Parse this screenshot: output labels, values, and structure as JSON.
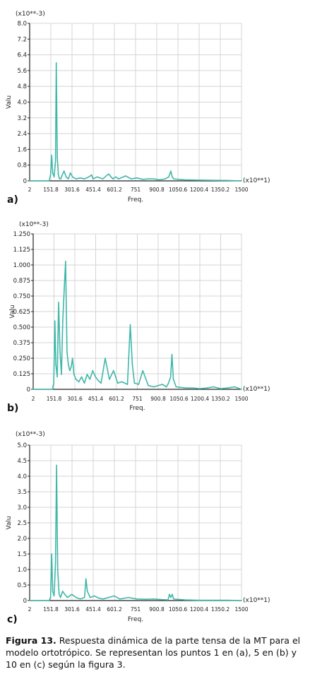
{
  "chart_data": [
    {
      "type": "line",
      "panel_label": "a)",
      "scale_note": "(x10**-3)",
      "x_scale_note": "(x10**1)",
      "xlabel": "Freq.",
      "ylabel": "Valu",
      "ylim": [
        0,
        8.0
      ],
      "yticks": [
        "0",
        "0.8",
        "1.6",
        "2.4",
        "3.2",
        "4.0",
        "4.8",
        "5.6",
        "6.4",
        "7.2",
        "8.0"
      ],
      "xlim": [
        2,
        1500
      ],
      "xticks": [
        "2",
        "151.8",
        "301.6",
        "451.4",
        "601.2",
        "751",
        "900.8",
        "1050.6",
        "1200.4",
        "1350.2",
        "1500"
      ],
      "grid": true,
      "color": "#3fb7a8",
      "x": [
        2,
        140,
        150,
        158,
        165,
        175,
        185,
        190,
        197,
        205,
        213,
        222,
        232,
        245,
        260,
        275,
        290,
        305,
        330,
        360,
        390,
        420,
        440,
        450,
        465,
        480,
        520,
        560,
        590,
        610,
        630,
        680,
        720,
        760,
        800,
        840,
        880,
        920,
        960,
        985,
        1000,
        1010,
        1020,
        1100,
        1200,
        1300,
        1400,
        1500
      ],
      "y": [
        0,
        0,
        0.3,
        1.3,
        0.4,
        0.2,
        1.0,
        6.0,
        1.2,
        0.3,
        0.1,
        0.1,
        0.3,
        0.5,
        0.2,
        0.1,
        0.4,
        0.2,
        0.1,
        0.15,
        0.1,
        0.2,
        0.3,
        0.1,
        0.15,
        0.2,
        0.1,
        0.35,
        0.1,
        0.2,
        0.1,
        0.25,
        0.1,
        0.15,
        0.08,
        0.1,
        0.1,
        0.05,
        0.1,
        0.2,
        0.5,
        0.2,
        0.1,
        0.05,
        0.04,
        0.03,
        0.02,
        0
      ]
    },
    {
      "type": "line",
      "panel_label": "b)",
      "scale_note": "(x10**-3)",
      "x_scale_note": "(x10**1)",
      "xlabel": "Freq.",
      "ylabel": "Valu",
      "ylim": [
        0,
        1.25
      ],
      "yticks": [
        "0",
        "0.125",
        "0.250",
        "0.375",
        "0.500",
        "0.625",
        "0.750",
        "0.875",
        "1.000",
        "1.125",
        "1.250"
      ],
      "xlim": [
        2,
        1500
      ],
      "xticks": [
        "2",
        "151.8",
        "301.6",
        "451.4",
        "601.2",
        "751",
        "900.8",
        "1050.6",
        "1200.4",
        "1350.2",
        "1500"
      ],
      "grid": true,
      "color": "#3fb7a8",
      "x": [
        2,
        140,
        150,
        158,
        165,
        175,
        185,
        195,
        205,
        215,
        225,
        235,
        245,
        255,
        265,
        275,
        285,
        295,
        310,
        330,
        350,
        370,
        390,
        410,
        430,
        450,
        470,
        490,
        520,
        550,
        580,
        610,
        640,
        680,
        700,
        715,
        730,
        760,
        790,
        830,
        870,
        930,
        960,
        975,
        990,
        1000,
        1010,
        1030,
        1100,
        1150,
        1200,
        1250,
        1300,
        1350,
        1400,
        1450,
        1500
      ],
      "y": [
        0,
        0,
        0.05,
        0.55,
        0.2,
        0.1,
        0.7,
        0.3,
        0.12,
        0.55,
        0.8,
        1.03,
        0.3,
        0.2,
        0.15,
        0.18,
        0.25,
        0.12,
        0.08,
        0.06,
        0.1,
        0.05,
        0.12,
        0.08,
        0.15,
        0.1,
        0.07,
        0.05,
        0.25,
        0.08,
        0.15,
        0.05,
        0.06,
        0.04,
        0.52,
        0.2,
        0.05,
        0.04,
        0.15,
        0.03,
        0.02,
        0.04,
        0.02,
        0.05,
        0.1,
        0.28,
        0.08,
        0.02,
        0.01,
        0.01,
        0.005,
        0.01,
        0.02,
        0.005,
        0.01,
        0.02,
        0
      ]
    },
    {
      "type": "line",
      "panel_label": "c)",
      "scale_note": "(x10**-3)",
      "x_scale_note": "(x10**1)",
      "xlabel": "Freq.",
      "ylabel": "Valu",
      "ylim": [
        0,
        5.0
      ],
      "yticks": [
        "0",
        "0.5",
        "1.0",
        "1.5",
        "2.0",
        "2.5",
        "3.0",
        "3.5",
        "4.0",
        "4.5",
        "5.0"
      ],
      "xlim": [
        2,
        1500
      ],
      "xticks": [
        "2",
        "151.8",
        "301.6",
        "451.4",
        "601.2",
        "751",
        "900.8",
        "1050.6",
        "1200.4",
        "1350.2",
        "1500"
      ],
      "grid": true,
      "color": "#3fb7a8",
      "x": [
        2,
        140,
        150,
        158,
        165,
        175,
        185,
        192,
        200,
        210,
        220,
        235,
        250,
        270,
        300,
        330,
        360,
        390,
        400,
        410,
        430,
        460,
        490,
        520,
        560,
        600,
        640,
        700,
        760,
        820,
        880,
        940,
        980,
        990,
        1000,
        1010,
        1020,
        1100,
        1200,
        1300,
        1400,
        1500
      ],
      "y": [
        0,
        0,
        0.1,
        1.5,
        0.3,
        0.15,
        1.2,
        4.35,
        1.0,
        0.2,
        0.1,
        0.3,
        0.2,
        0.1,
        0.2,
        0.1,
        0.05,
        0.1,
        0.7,
        0.3,
        0.1,
        0.15,
        0.08,
        0.05,
        0.1,
        0.15,
        0.05,
        0.1,
        0.05,
        0.04,
        0.05,
        0.03,
        0.02,
        0.2,
        0.1,
        0.2,
        0.05,
        0.02,
        0.01,
        0.01,
        0.01,
        0
      ]
    }
  ],
  "caption": {
    "figure_label": "Figura 13.",
    "text": "Respuesta dinámica de la parte tensa de la MT para el modelo ortotrópico. Se representan los puntos 1 en (a), 5 en (b) y 10 en (c) según la figura 3."
  }
}
